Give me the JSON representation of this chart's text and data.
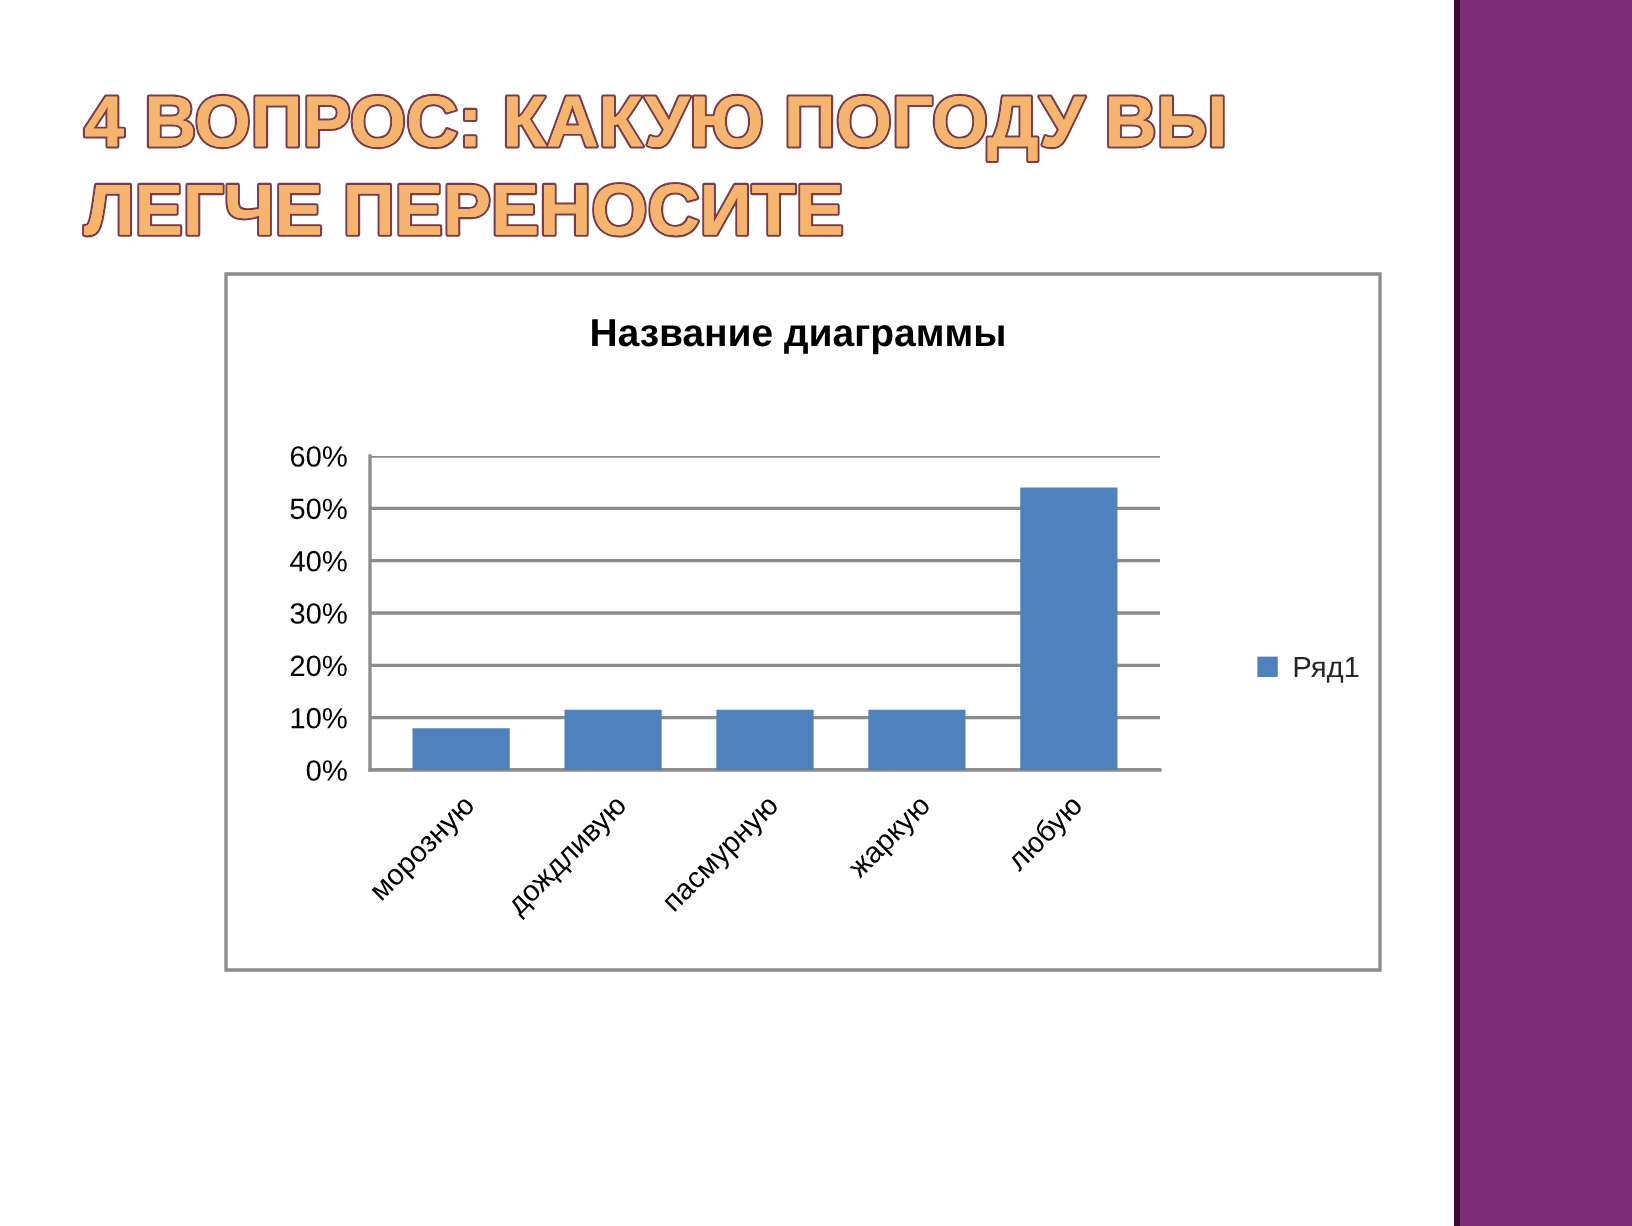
{
  "chart_data": {
    "type": "bar",
    "title": "4 ВОПРОС: КАКУЮ ПОГОДУ ВЫ ЛЕГЧЕ ПЕРЕНОСИТЕ",
    "subtitle": "Название диаграммы",
    "categories": [
      "морозную",
      "дождливую",
      "пасмурную",
      "жаркую",
      "любую"
    ],
    "series": [
      {
        "name": "Ряд1",
        "color": "#4f81bd",
        "values": [
          8,
          11.5,
          11.5,
          11.5,
          54
        ]
      }
    ],
    "ylim": [
      0,
      60
    ],
    "yticks": [
      {
        "value": 0,
        "label": "0%"
      },
      {
        "value": 10,
        "label": "10%"
      },
      {
        "value": 20,
        "label": "20%"
      },
      {
        "value": 30,
        "label": "30%"
      },
      {
        "value": 40,
        "label": "40%"
      },
      {
        "value": 50,
        "label": "50%"
      },
      {
        "value": 60,
        "label": "60%"
      }
    ],
    "grid": "y",
    "legend": "right"
  }
}
